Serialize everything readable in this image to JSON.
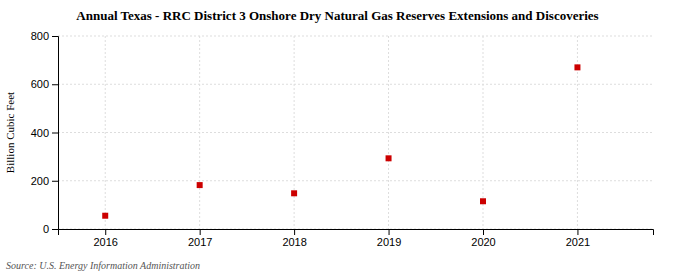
{
  "chart_data": {
    "type": "scatter",
    "title": "Annual Texas - RRC District 3 Onshore Dry Natural Gas Reserves Extensions and Discoveries",
    "y_label": "Billion Cubic Feet",
    "annotations": [
      "Source: U.S. Energy Information Administration"
    ],
    "x": [
      2016,
      2017,
      2018,
      2019,
      2020,
      2021
    ],
    "values": [
      55,
      182,
      148,
      293,
      115,
      670
    ],
    "color": "#cc0000",
    "marker": "square",
    "xlim": [
      2015.5,
      2021.8
    ],
    "xticks": [
      2016,
      2017,
      2018,
      2019,
      2020,
      2021
    ],
    "ylim": [
      0,
      800
    ],
    "yticks": [
      0,
      200,
      400,
      600,
      800
    ],
    "grid": true
  }
}
